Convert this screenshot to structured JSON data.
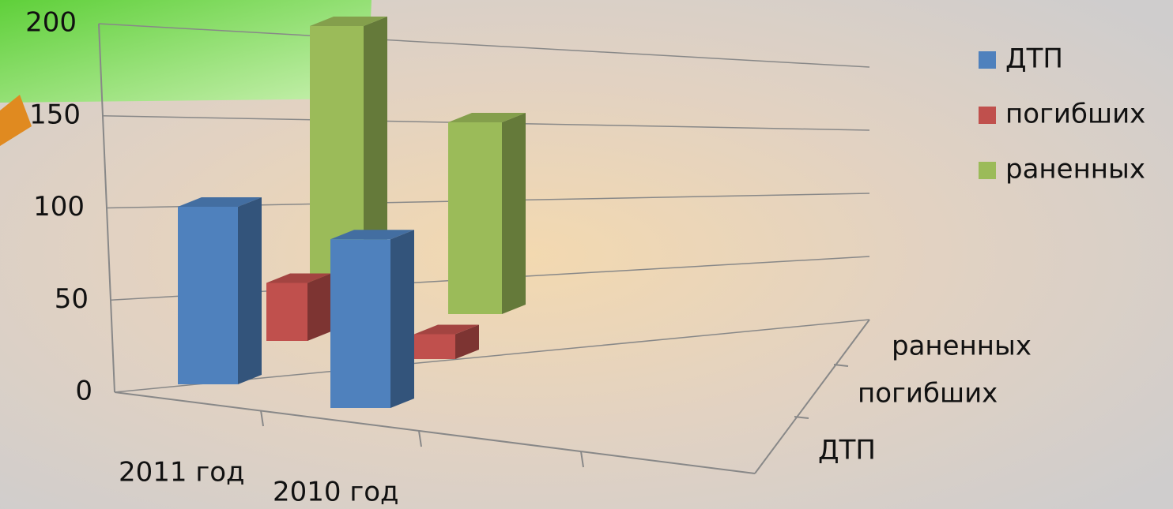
{
  "chart_data": {
    "type": "bar3d",
    "categories": [
      "2011 год",
      "2010 год"
    ],
    "series": [
      {
        "name": "ДТП",
        "color": "#4f81bd",
        "values": [
          100,
          95
        ]
      },
      {
        "name": "погибших",
        "color": "#c0504d",
        "values": [
          35,
          15
        ]
      },
      {
        "name": "раненных",
        "color": "#9bbb59",
        "values": [
          190,
          135
        ]
      }
    ],
    "ylim": [
      0,
      200
    ],
    "yticks": [
      0,
      50,
      100,
      150,
      200
    ],
    "grid": true,
    "legend": "right"
  }
}
